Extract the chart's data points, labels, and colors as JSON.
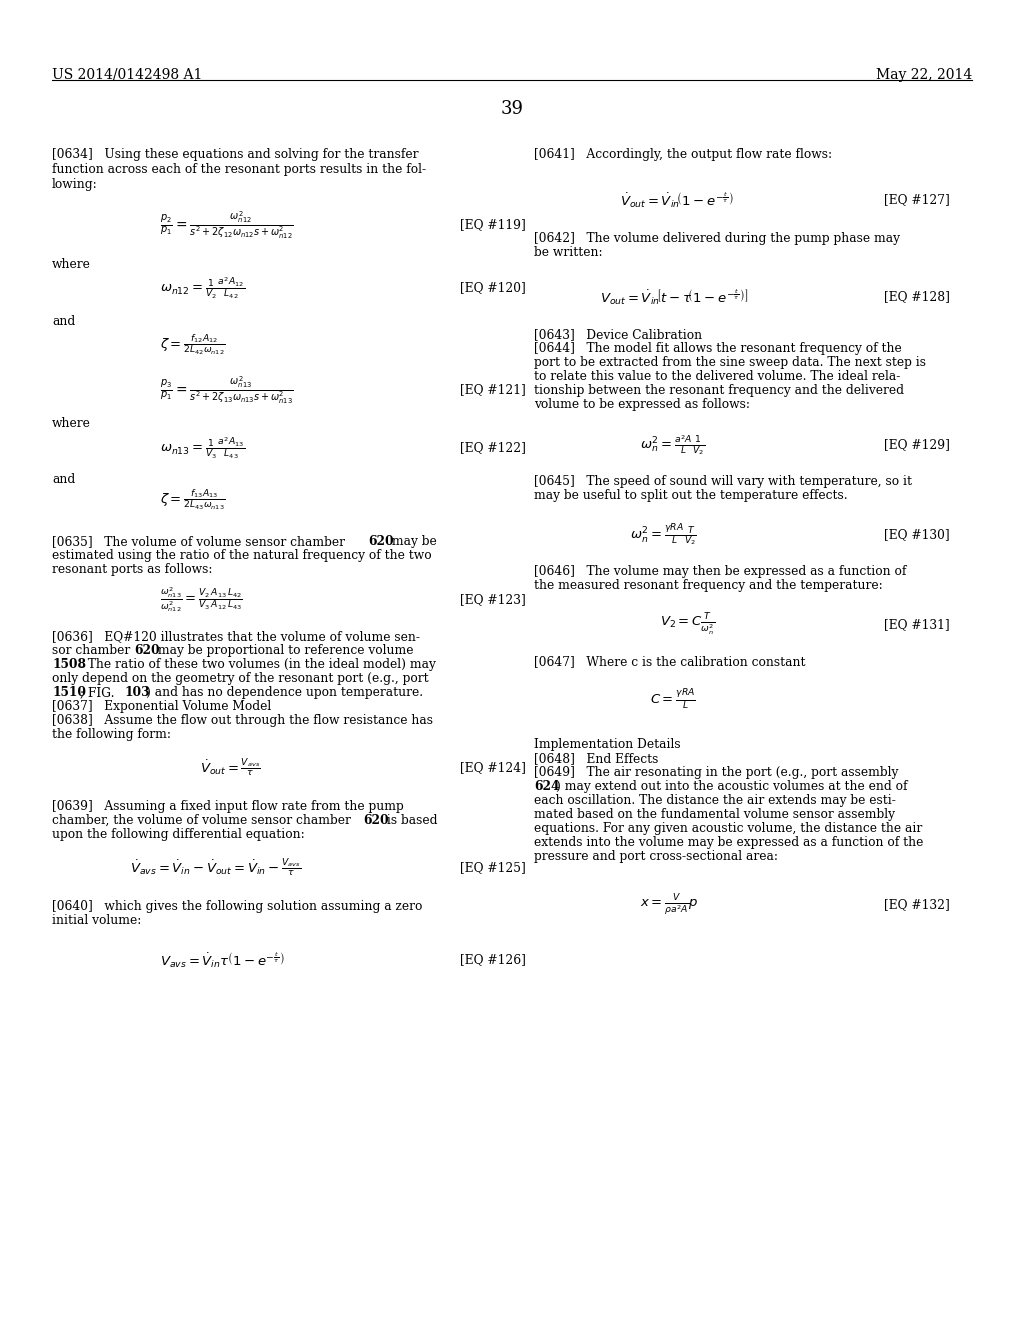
{
  "background_color": "#ffffff",
  "header_left": "US 2014/0142498 A1",
  "header_right": "May 22, 2014",
  "page_number": "39"
}
